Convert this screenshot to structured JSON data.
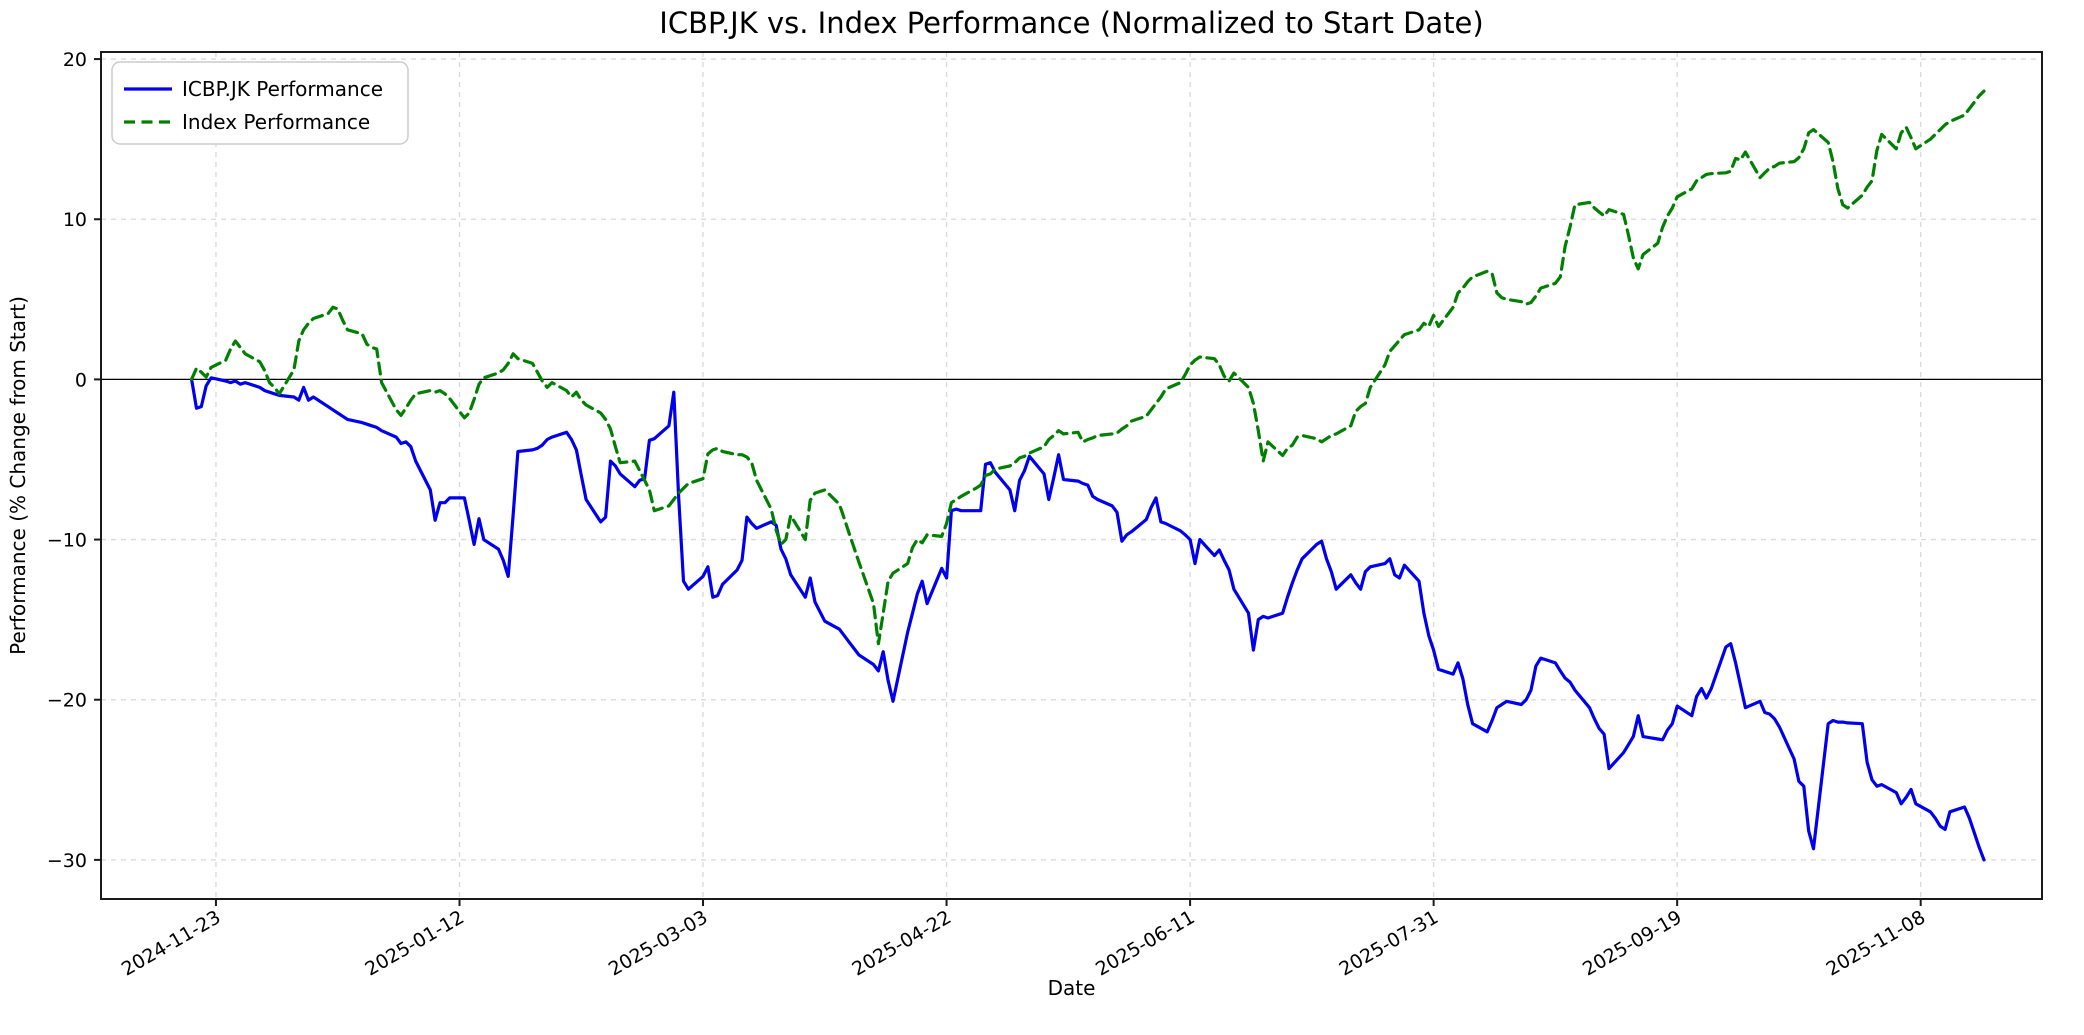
{
  "title": "ICBP.JK vs. Index Performance (Normalized to Start Date)",
  "xlabel": "Date",
  "ylabel": "Performance (% Change from Start)",
  "legend": {
    "entries": [
      {
        "label": "ICBP.JK Performance",
        "color": "#0000ee",
        "dash": "solid"
      },
      {
        "label": "Index Performance",
        "color": "#008000",
        "dash": "dashed"
      }
    ]
  },
  "colors": {
    "stock": "#0000ee",
    "index": "#008000",
    "grid": "#d9d9d9",
    "spine": "#1a1a1a",
    "zero_line": "#000000",
    "legend_border": "#cccccc",
    "background": "#ffffff"
  },
  "chart_data": {
    "type": "line",
    "title": "ICBP.JK vs. Index Performance (Normalized to Start Date)",
    "xlabel": "Date",
    "ylabel": "Performance (% Change from Start)",
    "grid": true,
    "legend_position": "upper left",
    "ylim": [
      -32.45,
      20.45
    ],
    "yticks": [
      20,
      10,
      0,
      -10,
      -20,
      -30
    ],
    "xtick_labels": [
      "2024-11-23",
      "2025-01-12",
      "2025-03-03",
      "2025-04-22",
      "2025-06-11",
      "2025-07-31",
      "2025-09-19",
      "2025-11-08"
    ],
    "zero_line": 0,
    "dates": [
      "2024-11-18",
      "2024-11-19",
      "2024-11-20",
      "2024-11-21",
      "2024-11-22",
      "2024-11-25",
      "2024-11-26",
      "2024-11-27",
      "2024-11-28",
      "2024-11-29",
      "2024-12-02",
      "2024-12-03",
      "2024-12-04",
      "2024-12-05",
      "2024-12-06",
      "2024-12-09",
      "2024-12-10",
      "2024-12-11",
      "2024-12-12",
      "2024-12-13",
      "2024-12-16",
      "2024-12-17",
      "2024-12-18",
      "2024-12-19",
      "2024-12-20",
      "2024-12-23",
      "2024-12-24",
      "2024-12-25",
      "2024-12-26",
      "2024-12-27",
      "2024-12-30",
      "2024-12-31",
      "2025-01-01",
      "2025-01-02",
      "2025-01-03",
      "2025-01-06",
      "2025-01-07",
      "2025-01-08",
      "2025-01-09",
      "2025-01-10",
      "2025-01-13",
      "2025-01-14",
      "2025-01-15",
      "2025-01-16",
      "2025-01-17",
      "2025-01-20",
      "2025-01-21",
      "2025-01-22",
      "2025-01-23",
      "2025-01-24",
      "2025-01-27",
      "2025-01-28",
      "2025-01-29",
      "2025-01-30",
      "2025-01-31",
      "2025-02-03",
      "2025-02-04",
      "2025-02-05",
      "2025-02-06",
      "2025-02-07",
      "2025-02-10",
      "2025-02-11",
      "2025-02-12",
      "2025-02-13",
      "2025-02-14",
      "2025-02-17",
      "2025-02-18",
      "2025-02-19",
      "2025-02-20",
      "2025-02-21",
      "2025-02-24",
      "2025-02-25",
      "2025-02-26",
      "2025-02-27",
      "2025-02-28",
      "2025-03-03",
      "2025-03-04",
      "2025-03-05",
      "2025-03-06",
      "2025-03-07",
      "2025-03-10",
      "2025-03-11",
      "2025-03-12",
      "2025-03-13",
      "2025-03-14",
      "2025-03-17",
      "2025-03-18",
      "2025-03-19",
      "2025-03-20",
      "2025-03-21",
      "2025-03-24",
      "2025-03-25",
      "2025-03-26",
      "2025-03-27",
      "2025-03-28",
      "2025-03-31",
      "2025-04-01",
      "2025-04-02",
      "2025-04-03",
      "2025-04-04",
      "2025-04-07",
      "2025-04-08",
      "2025-04-09",
      "2025-04-10",
      "2025-04-11",
      "2025-04-14",
      "2025-04-15",
      "2025-04-16",
      "2025-04-17",
      "2025-04-18",
      "2025-04-21",
      "2025-04-22",
      "2025-04-23",
      "2025-04-24",
      "2025-04-25",
      "2025-04-28",
      "2025-04-29",
      "2025-04-30",
      "2025-05-01",
      "2025-05-02",
      "2025-05-05",
      "2025-05-06",
      "2025-05-07",
      "2025-05-08",
      "2025-05-09",
      "2025-05-12",
      "2025-05-13",
      "2025-05-14",
      "2025-05-15",
      "2025-05-16",
      "2025-05-19",
      "2025-05-20",
      "2025-05-21",
      "2025-05-22",
      "2025-05-23",
      "2025-05-26",
      "2025-05-27",
      "2025-05-28",
      "2025-05-29",
      "2025-05-30",
      "2025-06-02",
      "2025-06-03",
      "2025-06-04",
      "2025-06-05",
      "2025-06-06",
      "2025-06-09",
      "2025-06-10",
      "2025-06-11",
      "2025-06-12",
      "2025-06-13",
      "2025-06-16",
      "2025-06-17",
      "2025-06-18",
      "2025-06-19",
      "2025-06-20",
      "2025-06-23",
      "2025-06-24",
      "2025-06-25",
      "2025-06-26",
      "2025-06-27",
      "2025-06-30",
      "2025-07-01",
      "2025-07-02",
      "2025-07-03",
      "2025-07-04",
      "2025-07-07",
      "2025-07-08",
      "2025-07-09",
      "2025-07-10",
      "2025-07-11",
      "2025-07-14",
      "2025-07-15",
      "2025-07-16",
      "2025-07-17",
      "2025-07-18",
      "2025-07-21",
      "2025-07-22",
      "2025-07-23",
      "2025-07-24",
      "2025-07-25",
      "2025-07-28",
      "2025-07-29",
      "2025-07-30",
      "2025-07-31",
      "2025-08-01",
      "2025-08-04",
      "2025-08-05",
      "2025-08-06",
      "2025-08-07",
      "2025-08-08",
      "2025-08-11",
      "2025-08-12",
      "2025-08-13",
      "2025-08-14",
      "2025-08-15",
      "2025-08-18",
      "2025-08-19",
      "2025-08-20",
      "2025-08-21",
      "2025-08-22",
      "2025-08-25",
      "2025-08-26",
      "2025-08-27",
      "2025-08-28",
      "2025-08-29",
      "2025-09-01",
      "2025-09-02",
      "2025-09-03",
      "2025-09-04",
      "2025-09-05",
      "2025-09-08",
      "2025-09-09",
      "2025-09-10",
      "2025-09-11",
      "2025-09-12",
      "2025-09-15",
      "2025-09-16",
      "2025-09-17",
      "2025-09-18",
      "2025-09-19",
      "2025-09-22",
      "2025-09-23",
      "2025-09-24",
      "2025-09-25",
      "2025-09-26",
      "2025-09-29",
      "2025-09-30",
      "2025-10-01",
      "2025-10-02",
      "2025-10-03",
      "2025-10-06",
      "2025-10-07",
      "2025-10-08",
      "2025-10-09",
      "2025-10-10",
      "2025-10-13",
      "2025-10-14",
      "2025-10-15",
      "2025-10-16",
      "2025-10-17",
      "2025-10-20",
      "2025-10-21",
      "2025-10-22",
      "2025-10-23",
      "2025-10-24",
      "2025-10-27",
      "2025-10-28",
      "2025-10-29",
      "2025-10-30",
      "2025-10-31",
      "2025-11-03",
      "2025-11-04",
      "2025-11-05",
      "2025-11-06",
      "2025-11-07",
      "2025-11-10",
      "2025-11-11",
      "2025-11-12",
      "2025-11-13",
      "2025-11-14",
      "2025-11-17",
      "2025-11-18",
      "2025-11-19",
      "2025-11-20",
      "2025-11-21"
    ],
    "series": [
      {
        "name": "ICBP.JK Performance",
        "values": [
          0.0,
          -1.8,
          -1.7,
          -0.4,
          0.1,
          -0.1,
          -0.2,
          -0.1,
          -0.3,
          -0.2,
          -0.5,
          -0.7,
          -0.8,
          -0.9,
          -1.0,
          -1.1,
          -1.3,
          -0.5,
          -1.3,
          -1.1,
          -1.7,
          -1.9,
          -2.1,
          -2.3,
          -2.5,
          -2.7,
          -2.8,
          -2.9,
          -3.0,
          -3.2,
          -3.6,
          -4.0,
          -3.9,
          -4.2,
          -5.1,
          -6.9,
          -8.8,
          -7.7,
          -7.7,
          -7.4,
          -7.4,
          -8.8,
          -10.3,
          -8.7,
          -10.0,
          -10.6,
          -11.3,
          -12.3,
          -8.5,
          -4.5,
          -4.4,
          -4.3,
          -4.1,
          -3.75,
          -3.6,
          -3.3,
          -3.75,
          -4.4,
          -6.0,
          -7.5,
          -8.9,
          -8.6,
          -5.1,
          -5.4,
          -5.9,
          -6.7,
          -6.3,
          -6.2,
          -3.8,
          -3.7,
          -2.9,
          -0.8,
          -7.4,
          -12.6,
          -13.1,
          -12.3,
          -11.7,
          -13.6,
          -13.5,
          -12.8,
          -11.9,
          -11.3,
          -8.6,
          -9.0,
          -9.3,
          -8.9,
          -9.1,
          -10.6,
          -11.2,
          -12.2,
          -13.6,
          -12.4,
          -13.9,
          -14.5,
          -15.1,
          -15.6,
          -16.0,
          -16.4,
          -16.8,
          -17.2,
          -17.8,
          -18.2,
          -17.0,
          -18.8,
          -20.1,
          -15.8,
          -14.6,
          -13.4,
          -12.6,
          -14.0,
          -11.8,
          -12.4,
          -8.2,
          -8.1,
          -8.2,
          -8.2,
          -8.2,
          -5.3,
          -5.2,
          -5.8,
          -6.9,
          -8.2,
          -6.3,
          -5.7,
          -4.8,
          -5.9,
          -7.5,
          -6.15,
          -4.7,
          -6.25,
          -6.35,
          -6.5,
          -6.6,
          -7.3,
          -7.5,
          -7.9,
          -8.3,
          -10.1,
          -9.7,
          -9.5,
          -8.75,
          -8.0,
          -7.4,
          -8.9,
          -9.0,
          -9.45,
          -9.7,
          -10.0,
          -11.5,
          -10.0,
          -11.0,
          -10.65,
          -11.3,
          -11.9,
          -13.1,
          -14.6,
          -16.9,
          -15.0,
          -14.8,
          -14.9,
          -14.6,
          -13.6,
          -12.7,
          -11.9,
          -11.2,
          -10.3,
          -10.1,
          -11.2,
          -12.0,
          -13.1,
          -12.2,
          -12.7,
          -13.1,
          -12.0,
          -11.7,
          -11.5,
          -11.2,
          -12.2,
          -12.4,
          -11.6,
          -12.6,
          -14.6,
          -16.0,
          -16.9,
          -18.1,
          -18.4,
          -17.7,
          -18.7,
          -20.3,
          -21.5,
          -22.0,
          -21.3,
          -20.5,
          -20.3,
          -20.1,
          -20.3,
          -20.0,
          -19.4,
          -17.9,
          -17.4,
          -17.7,
          -18.2,
          -18.65,
          -18.9,
          -19.4,
          -20.5,
          -21.2,
          -21.8,
          -22.15,
          -24.3,
          -23.3,
          -22.8,
          -22.3,
          -21.0,
          -22.3,
          -22.45,
          -22.5,
          -21.9,
          -21.5,
          -20.4,
          -21.0,
          -19.8,
          -19.3,
          -19.9,
          -19.3,
          -16.7,
          -16.5,
          -17.7,
          -19.1,
          -20.5,
          -20.1,
          -20.8,
          -20.9,
          -21.2,
          -21.7,
          -23.7,
          -25.1,
          -25.4,
          -28.2,
          -29.3,
          -21.5,
          -21.3,
          -21.4,
          -21.4,
          -21.45,
          -21.5,
          -23.9,
          -25.0,
          -25.4,
          -25.3,
          -25.8,
          -26.5,
          -26.1,
          -25.6,
          -26.5,
          -27.0,
          -27.4,
          -27.9,
          -28.1,
          -27.0,
          -26.7,
          -27.4,
          -28.3,
          -29.2,
          -30.0
        ]
      },
      {
        "name": "Index Performance",
        "values": [
          0.0,
          0.7,
          0.45,
          0.15,
          0.75,
          1.2,
          1.9,
          2.4,
          2.0,
          1.6,
          1.1,
          0.55,
          -0.2,
          -0.5,
          -0.9,
          0.6,
          2.4,
          3.1,
          3.5,
          3.8,
          4.1,
          4.5,
          4.4,
          3.7,
          3.1,
          2.85,
          2.2,
          2.0,
          1.9,
          -0.2,
          -1.9,
          -2.25,
          -1.8,
          -1.3,
          -0.9,
          -0.7,
          -0.8,
          -0.7,
          -0.9,
          -1.2,
          -2.4,
          -2.1,
          -1.25,
          -0.3,
          0.1,
          0.4,
          0.6,
          1.0,
          1.6,
          1.3,
          1.0,
          0.45,
          -0.1,
          -0.5,
          -0.2,
          -0.7,
          -1.1,
          -0.8,
          -1.3,
          -1.6,
          -2.1,
          -2.5,
          -3.1,
          -4.2,
          -5.2,
          -5.1,
          -5.7,
          -6.3,
          -6.9,
          -8.2,
          -7.9,
          -7.5,
          -7.1,
          -6.8,
          -6.5,
          -6.2,
          -4.65,
          -4.4,
          -4.3,
          -4.5,
          -4.7,
          -4.7,
          -4.85,
          -5.2,
          -6.3,
          -8.1,
          -9.4,
          -10.3,
          -10.0,
          -8.5,
          -10.0,
          -7.55,
          -7.1,
          -7.0,
          -6.9,
          -7.8,
          -8.7,
          -9.6,
          -10.5,
          -11.4,
          -14.0,
          -16.5,
          -14.6,
          -12.6,
          -12.1,
          -11.5,
          -10.5,
          -10.0,
          -10.2,
          -9.7,
          -9.8,
          -9.0,
          -7.7,
          -7.5,
          -7.3,
          -6.8,
          -6.6,
          -6.0,
          -5.9,
          -5.6,
          -5.4,
          -5.2,
          -4.9,
          -4.8,
          -4.6,
          -4.2,
          -3.75,
          -3.5,
          -3.2,
          -3.4,
          -3.3,
          -3.9,
          -3.75,
          -3.65,
          -3.5,
          -3.4,
          -3.35,
          -3.1,
          -2.9,
          -2.6,
          -2.3,
          -1.9,
          -1.5,
          -1.1,
          -0.6,
          -0.2,
          0.3,
          0.9,
          1.2,
          1.4,
          1.3,
          0.9,
          0.2,
          -0.1,
          0.4,
          -0.5,
          -1.5,
          -3.2,
          -5.1,
          -3.9,
          -4.75,
          -4.3,
          -4.1,
          -3.6,
          -3.5,
          -3.7,
          -3.9,
          -3.7,
          -3.5,
          -3.4,
          -2.9,
          -2.0,
          -1.7,
          -1.5,
          -0.5,
          0.9,
          1.75,
          2.1,
          2.45,
          2.8,
          3.1,
          3.5,
          3.3,
          4.0,
          3.3,
          4.5,
          5.4,
          5.7,
          6.1,
          6.4,
          6.75,
          6.6,
          5.4,
          5.1,
          5.0,
          4.85,
          4.7,
          4.8,
          5.2,
          5.7,
          6.0,
          6.4,
          8.3,
          9.5,
          10.9,
          11.05,
          10.7,
          10.45,
          10.2,
          10.6,
          10.3,
          9.0,
          7.6,
          6.9,
          7.8,
          8.5,
          9.5,
          10.2,
          10.7,
          11.4,
          11.9,
          12.4,
          12.6,
          12.8,
          12.85,
          12.9,
          13.0,
          13.8,
          13.7,
          14.2,
          12.6,
          12.9,
          13.2,
          13.3,
          13.5,
          13.6,
          13.85,
          14.4,
          15.4,
          15.6,
          14.8,
          13.6,
          11.9,
          10.9,
          10.7,
          11.5,
          12.0,
          12.4,
          14.3,
          15.3,
          14.4,
          15.4,
          15.75,
          15.1,
          14.4,
          15.0,
          15.3,
          15.6,
          15.9,
          16.1,
          16.5,
          16.9,
          17.3,
          17.7,
          18.0
        ]
      }
    ]
  }
}
